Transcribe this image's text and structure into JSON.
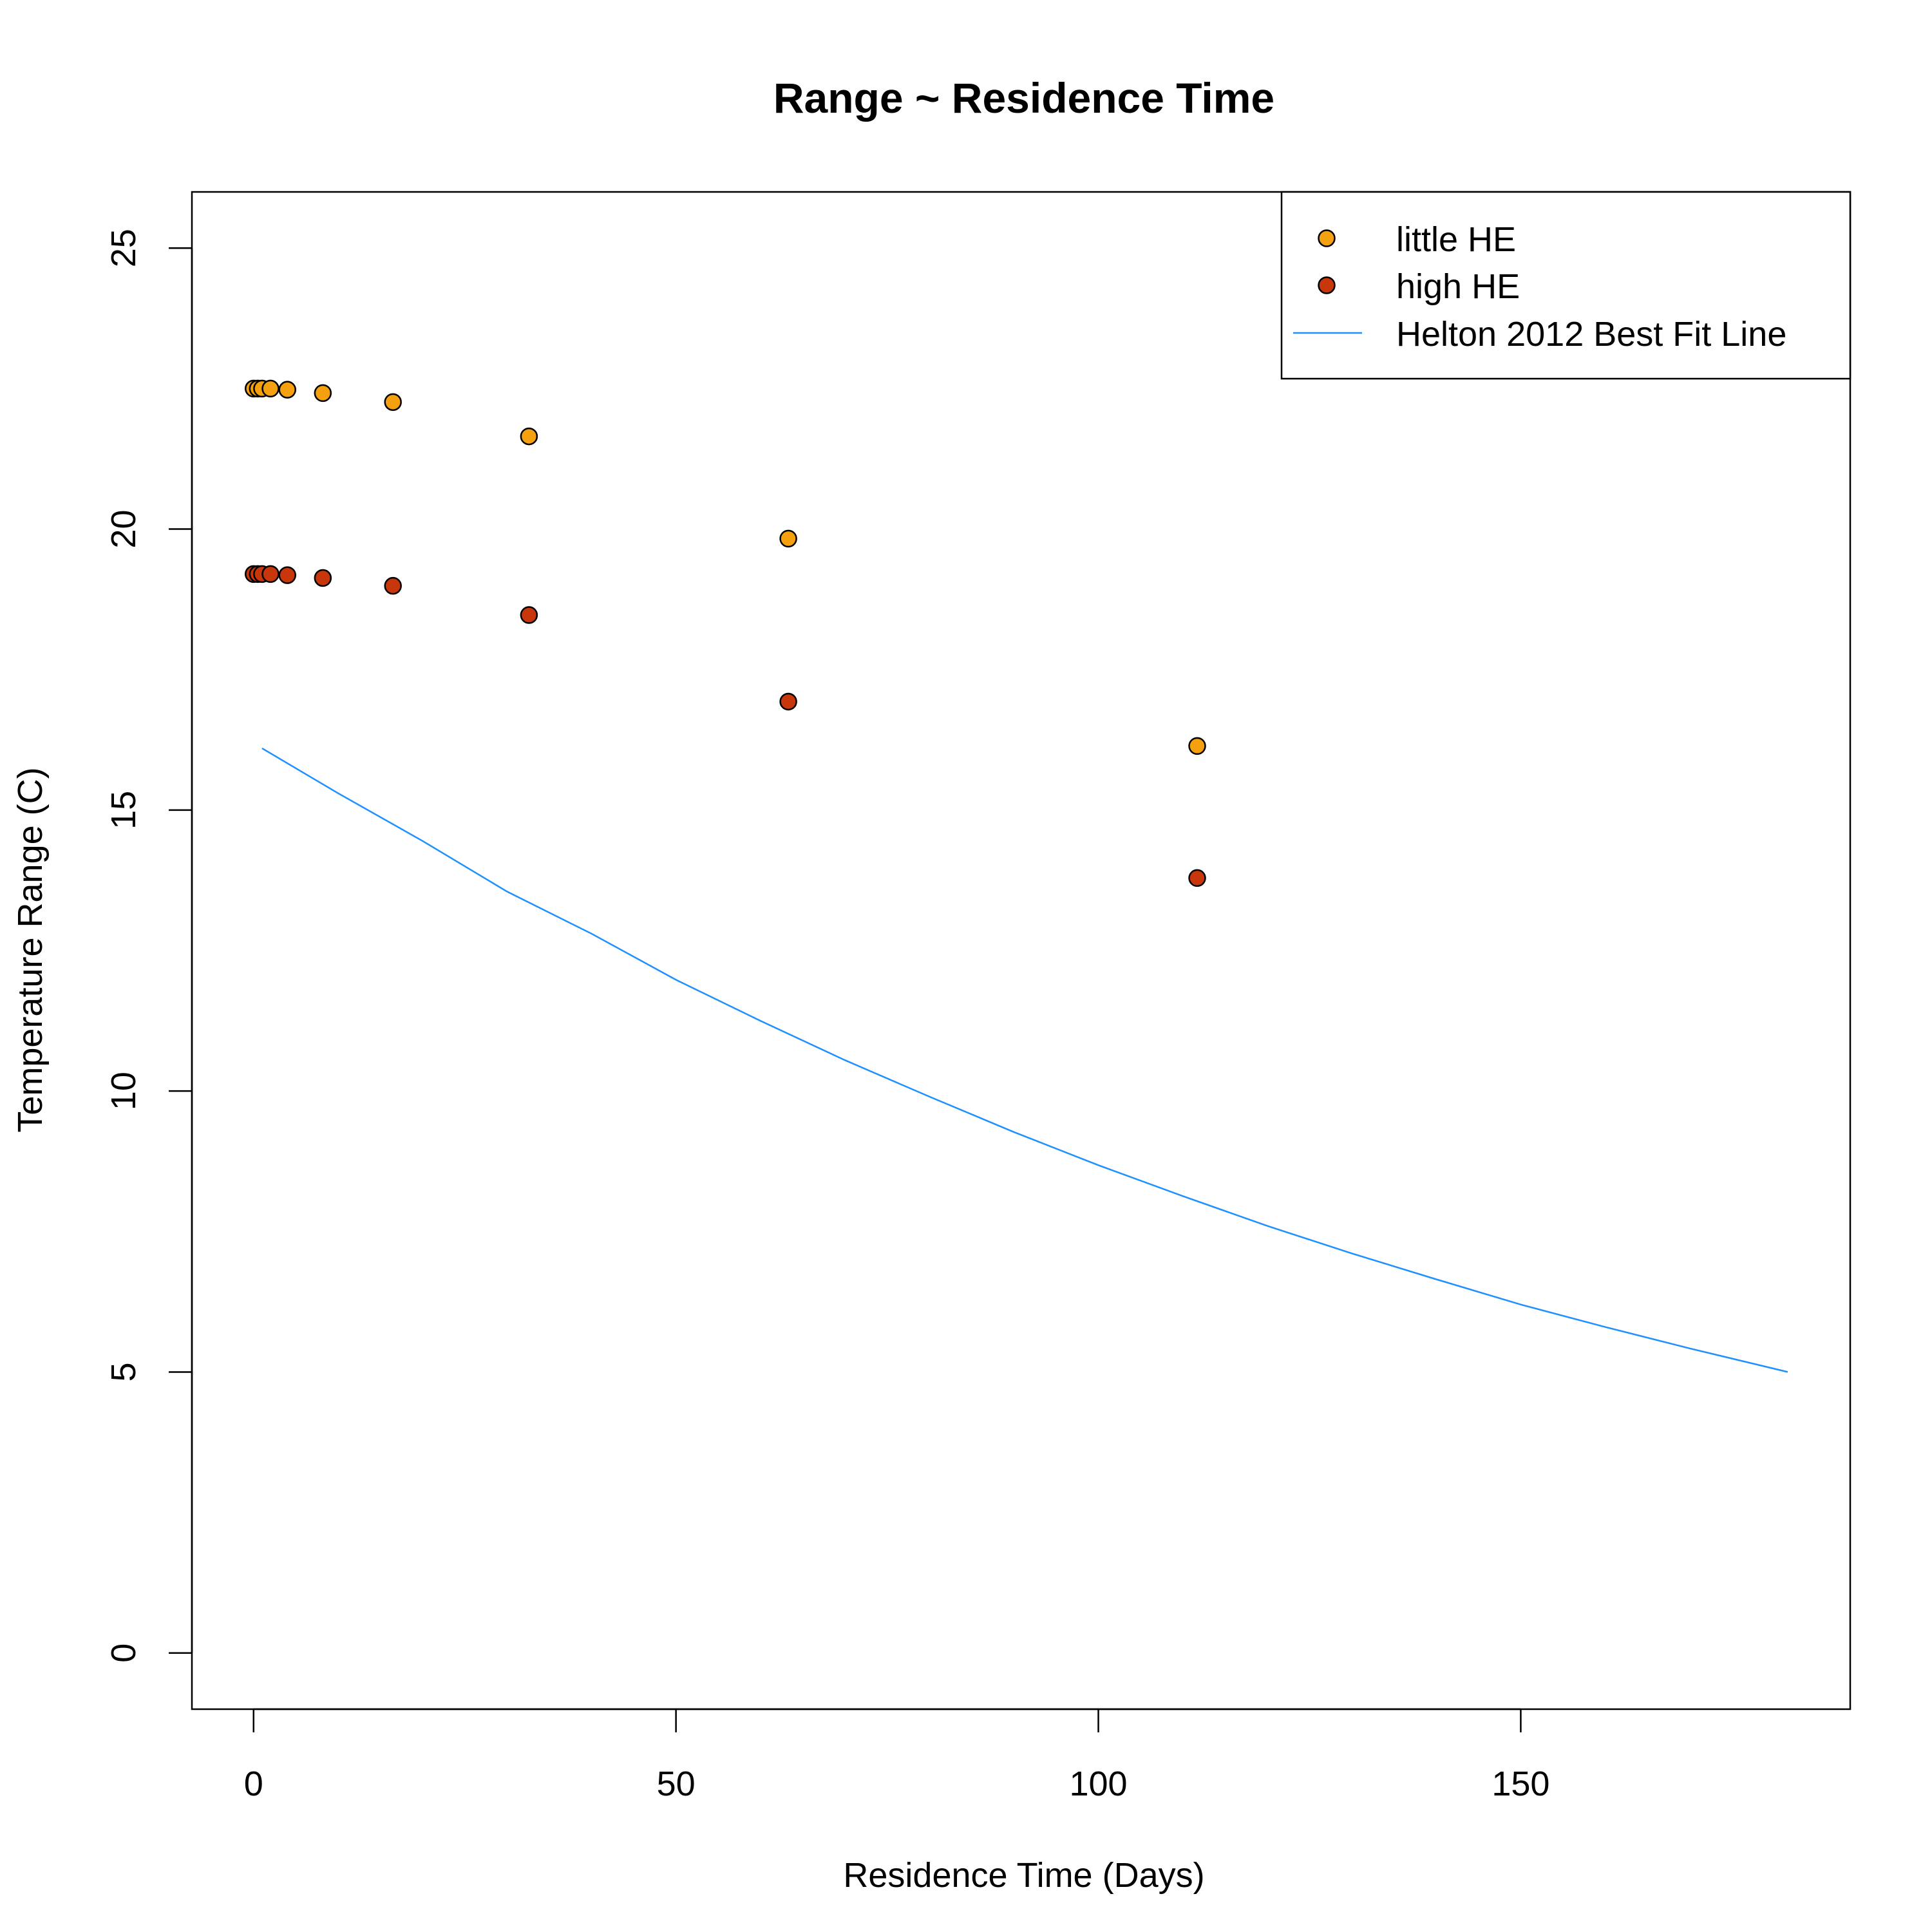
{
  "chart_data": {
    "type": "scatter",
    "title": "Range ~ Residence Time",
    "xlabel": "Residence Time (Days)",
    "ylabel": "Temperature Range (C)",
    "xlim": [
      -7.3,
      189.0
    ],
    "ylim": [
      -1.0,
      26.0
    ],
    "x_ticks": [
      0,
      50,
      100,
      150
    ],
    "y_ticks": [
      0,
      5,
      10,
      15,
      20,
      25
    ],
    "grid": false,
    "legend_position": "top-right",
    "series": [
      {
        "name": "little HE",
        "kind": "points",
        "color": "#F5A00F",
        "points": [
          {
            "x": 0.0,
            "y": 22.5
          },
          {
            "x": 0.5,
            "y": 22.5
          },
          {
            "x": 1.0,
            "y": 22.5
          },
          {
            "x": 2.0,
            "y": 22.5
          },
          {
            "x": 4.0,
            "y": 22.48
          },
          {
            "x": 8.2,
            "y": 22.42
          },
          {
            "x": 16.5,
            "y": 22.26
          },
          {
            "x": 32.6,
            "y": 21.65
          },
          {
            "x": 63.3,
            "y": 19.83
          },
          {
            "x": 111.7,
            "y": 16.14
          }
        ]
      },
      {
        "name": "high HE",
        "kind": "points",
        "color": "#C8360B",
        "points": [
          {
            "x": 0.0,
            "y": 19.2
          },
          {
            "x": 0.5,
            "y": 19.2
          },
          {
            "x": 1.0,
            "y": 19.2
          },
          {
            "x": 2.0,
            "y": 19.2
          },
          {
            "x": 4.0,
            "y": 19.18
          },
          {
            "x": 8.2,
            "y": 19.13
          },
          {
            "x": 16.5,
            "y": 18.99
          },
          {
            "x": 32.6,
            "y": 18.47
          },
          {
            "x": 63.3,
            "y": 16.93
          },
          {
            "x": 111.7,
            "y": 13.79
          }
        ]
      },
      {
        "name": "Helton 2012 Best Fit Line",
        "kind": "line",
        "color": "#1E90FF",
        "points": [
          {
            "x": 1,
            "y": 16.1
          },
          {
            "x": 10,
            "y": 15.3
          },
          {
            "x": 20,
            "y": 14.45
          },
          {
            "x": 30,
            "y": 13.55
          },
          {
            "x": 40,
            "y": 12.8
          },
          {
            "x": 50,
            "y": 11.98
          },
          {
            "x": 60,
            "y": 11.25
          },
          {
            "x": 70,
            "y": 10.55
          },
          {
            "x": 80,
            "y": 9.9
          },
          {
            "x": 90,
            "y": 9.27
          },
          {
            "x": 100,
            "y": 8.68
          },
          {
            "x": 110,
            "y": 8.13
          },
          {
            "x": 120,
            "y": 7.6
          },
          {
            "x": 130,
            "y": 7.11
          },
          {
            "x": 140,
            "y": 6.65
          },
          {
            "x": 150,
            "y": 6.2
          },
          {
            "x": 160,
            "y": 5.8
          },
          {
            "x": 170,
            "y": 5.42
          },
          {
            "x": 181.6,
            "y": 5.0
          }
        ]
      }
    ]
  }
}
